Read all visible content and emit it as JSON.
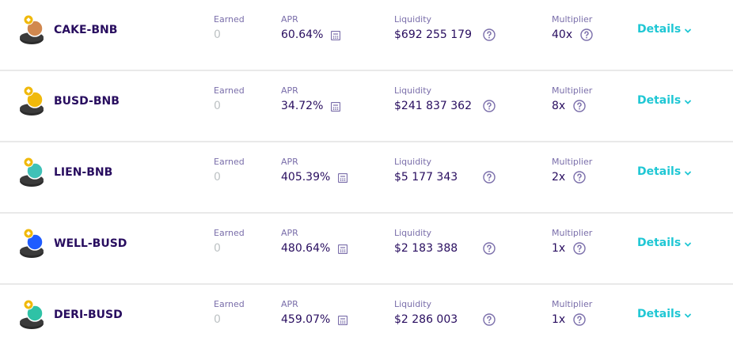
{
  "labels": {
    "earned": "Earned",
    "apr": "APR",
    "liquidity": "Liquidity",
    "multiplier": "Multiplier",
    "details": "Details"
  },
  "colors": {
    "text": "#280d5f",
    "muted": "#7a6eaa",
    "accent": "#1fc7d4",
    "divider": "#e9e9e9"
  },
  "farms": [
    {
      "pair": "CAKE-BNB",
      "earned": "0",
      "apr": "60.64%",
      "liquidity": "$692 255 179",
      "multiplier": "40x",
      "token_icon": "cake-bnb-icon",
      "token_color": "#d1884f"
    },
    {
      "pair": "BUSD-BNB",
      "earned": "0",
      "apr": "34.72%",
      "liquidity": "$241 837 362",
      "multiplier": "8x",
      "token_icon": "busd-bnb-icon",
      "token_color": "#f0b90b"
    },
    {
      "pair": "LIEN-BNB",
      "earned": "0",
      "apr": "405.39%",
      "liquidity": "$5 177 343",
      "multiplier": "2x",
      "token_icon": "lien-bnb-icon",
      "token_color": "#3fc1b7"
    },
    {
      "pair": "WELL-BUSD",
      "earned": "0",
      "apr": "480.64%",
      "liquidity": "$2 183 388",
      "multiplier": "1x",
      "token_icon": "well-busd-icon",
      "token_color": "#1f5cff"
    },
    {
      "pair": "DERI-BUSD",
      "earned": "0",
      "apr": "459.07%",
      "liquidity": "$2 286 003",
      "multiplier": "1x",
      "token_icon": "deri-busd-icon",
      "token_color": "#2fc2a6"
    }
  ]
}
